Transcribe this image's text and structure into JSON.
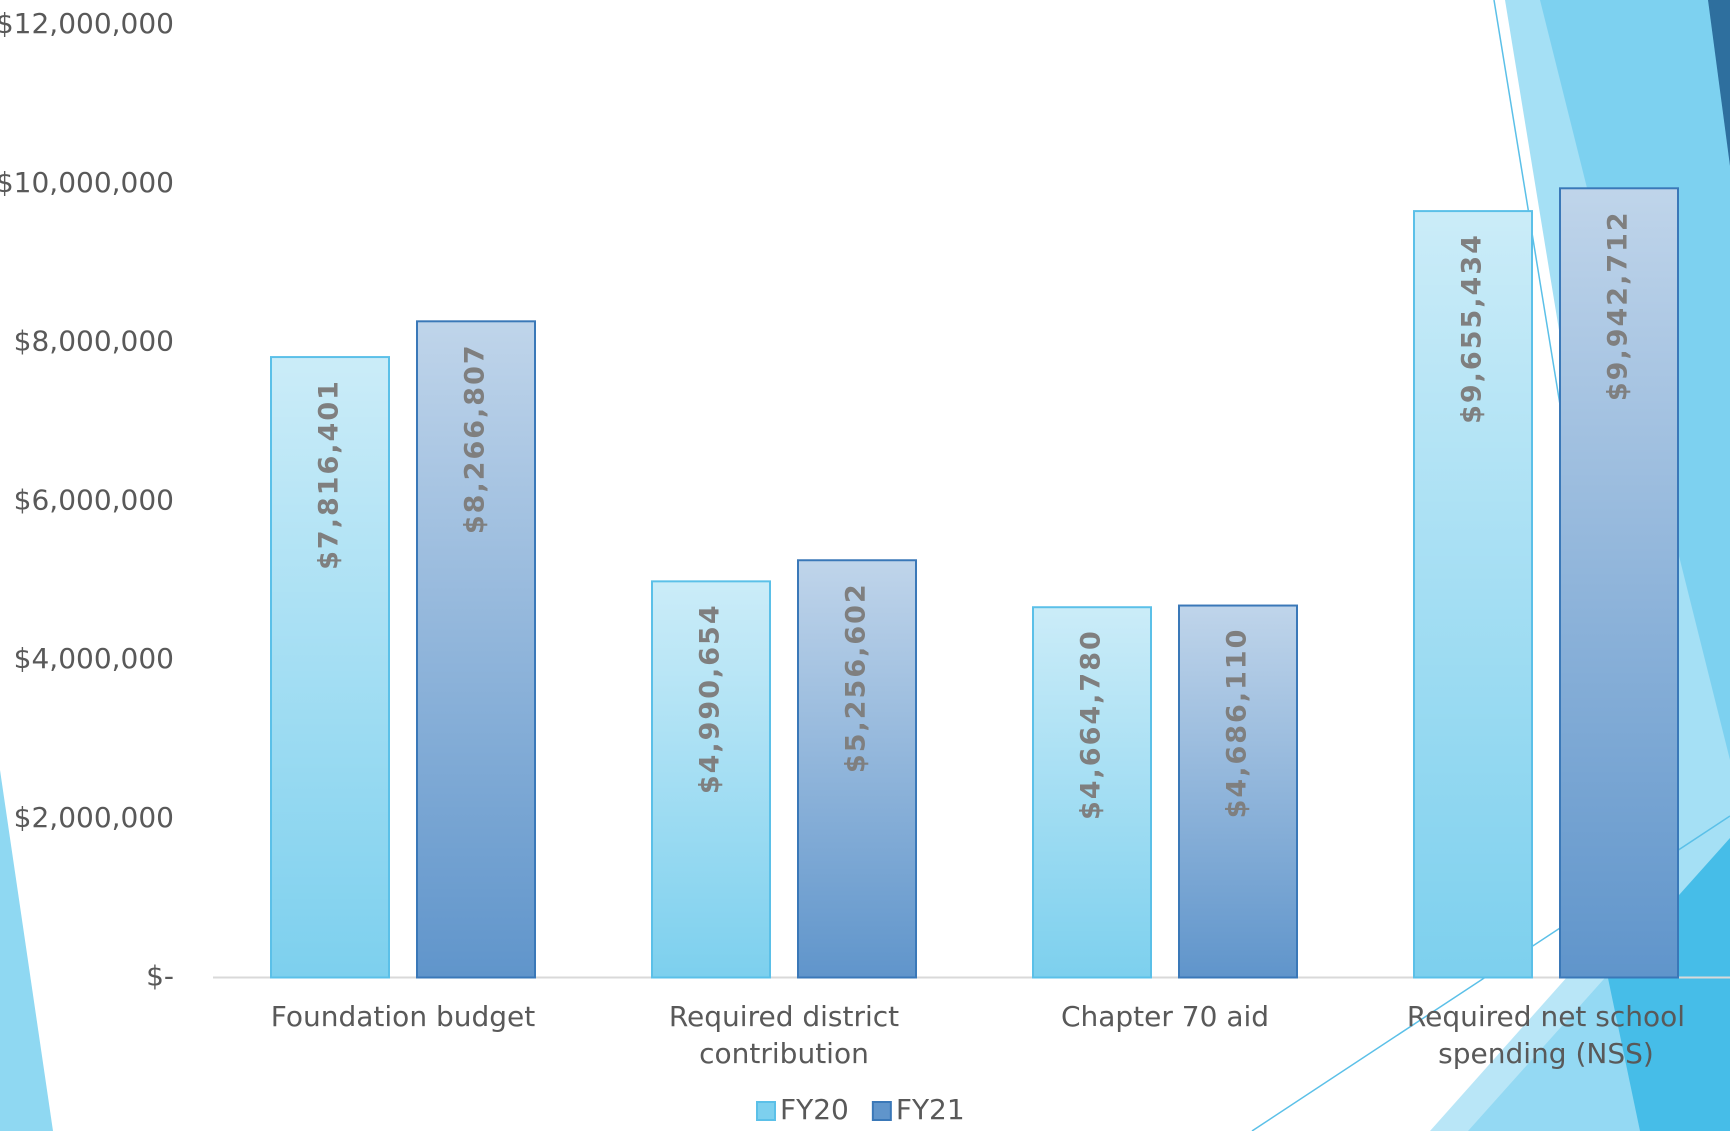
{
  "chart_data": {
    "type": "bar",
    "categories": [
      "Foundation budget",
      "Required district contribution",
      "Chapter 70 aid",
      "Required net school spending (NSS)"
    ],
    "series": [
      {
        "name": "FY20",
        "color": "#7dd0ee",
        "values": [
          7816401,
          4990654,
          4664780,
          9655434
        ],
        "value_labels": [
          "$7,816,401",
          "$4,990,654",
          "$4,664,780",
          "$9,655,434"
        ]
      },
      {
        "name": "FY21",
        "color": "#6095cb",
        "values": [
          8266807,
          5256602,
          4686110,
          9942712
        ],
        "value_labels": [
          "$8,266,807",
          "$5,256,602",
          "$4,686,110",
          "$9,942,712"
        ]
      }
    ],
    "ylim": [
      0,
      12000000
    ],
    "yticks": [
      {
        "value": 0,
        "label": "$-"
      },
      {
        "value": 2000000,
        "label": "$2,000,000"
      },
      {
        "value": 4000000,
        "label": "$4,000,000"
      },
      {
        "value": 6000000,
        "label": "$6,000,000"
      },
      {
        "value": 8000000,
        "label": "$8,000,000"
      },
      {
        "value": 10000000,
        "label": "$10,000,000"
      },
      {
        "value": 12000000,
        "label": "$12,000,000"
      }
    ],
    "grid": false
  }
}
